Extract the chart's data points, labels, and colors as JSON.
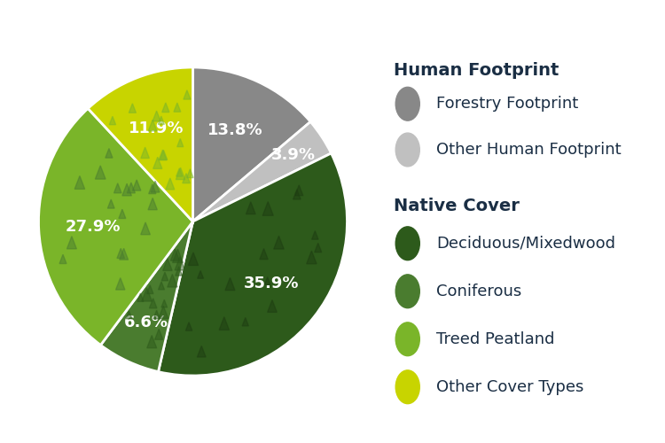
{
  "slices": [
    {
      "label": "Forestry Footprint",
      "value": 13.8,
      "color": "#888888",
      "tree_color": null
    },
    {
      "label": "Other Human Footprint",
      "value": 3.9,
      "color": "#c0c0c0",
      "tree_color": null
    },
    {
      "label": "Deciduous/Mixedwood",
      "value": 35.9,
      "color": "#2d5a1b",
      "tree_color": "#1e3d12"
    },
    {
      "label": "Coniferous",
      "value": 6.6,
      "color": "#4a7c2f",
      "tree_color": "#2d5a1b"
    },
    {
      "label": "Treed Peatland",
      "value": 27.9,
      "color": "#7ab529",
      "tree_color": "#4a7c2f"
    },
    {
      "label": "Other Cover Types",
      "value": 11.9,
      "color": "#c8d400",
      "tree_color": "#7ab529"
    }
  ],
  "legend_header1": "Human Footprint",
  "legend_header2": "Native Cover",
  "legend_header_color": "#1a2e44",
  "legend_text_color": "#1a2e44",
  "background_color": "#ffffff",
  "wedge_edge_color": "#ffffff",
  "wedge_linewidth": 2.0,
  "label_fontsize": 13,
  "legend_fontsize": 13,
  "legend_header_fontsize": 14
}
